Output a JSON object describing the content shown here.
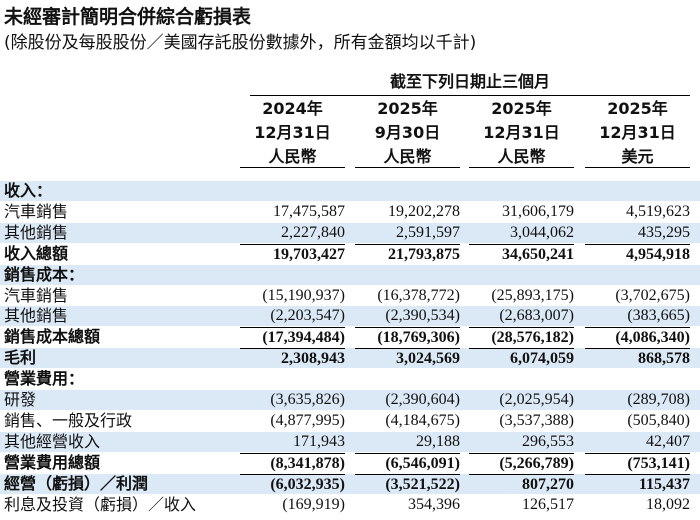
{
  "header": {
    "title": "未經審計簡明合併綜合虧損表",
    "subtitle": "(除股份及每股股份／美國存託股份數據外，所有金額均以千計)"
  },
  "table": {
    "group_header": "截至下列日期止三個月",
    "columns": [
      {
        "year": "2024年",
        "date": "12月31日",
        "currency": "人民幣"
      },
      {
        "year": "2025年",
        "date": "9月30日",
        "currency": "人民幣"
      },
      {
        "year": "2025年",
        "date": "12月31日",
        "currency": "人民幣"
      },
      {
        "year": "2025年",
        "date": "12月31日",
        "currency": "美元"
      }
    ],
    "rows": [
      {
        "label": "收入：",
        "values": []
      },
      {
        "label": "汽車銷售",
        "values": [
          "17,475,587",
          "19,202,278",
          "31,606,179",
          "4,519,623"
        ]
      },
      {
        "label": "其他銷售",
        "values": [
          "2,227,840",
          "2,591,597",
          "3,044,062",
          "435,295"
        ]
      },
      {
        "label": "收入總額",
        "values": [
          "19,703,427",
          "21,793,875",
          "34,650,241",
          "4,954,918"
        ]
      },
      {
        "label": "銷售成本：",
        "values": []
      },
      {
        "label": "汽車銷售",
        "values": [
          "(15,190,937)",
          "(16,378,772)",
          "(25,893,175)",
          "(3,702,675)"
        ]
      },
      {
        "label": "其他銷售",
        "values": [
          "(2,203,547)",
          "(2,390,534)",
          "(2,683,007)",
          "(383,665)"
        ]
      },
      {
        "label": "銷售成本總額",
        "values": [
          "(17,394,484)",
          "(18,769,306)",
          "(28,576,182)",
          "(4,086,340)"
        ]
      },
      {
        "label": "毛利",
        "values": [
          "2,308,943",
          "3,024,569",
          "6,074,059",
          "868,578"
        ]
      },
      {
        "label": "營業費用：",
        "values": []
      },
      {
        "label": "研發",
        "values": [
          "(3,635,826)",
          "(2,390,604)",
          "(2,025,954)",
          "(289,708)"
        ]
      },
      {
        "label": "銷售、一般及行政",
        "values": [
          "(4,877,995)",
          "(4,184,675)",
          "(3,537,388)",
          "(505,840)"
        ]
      },
      {
        "label": "其他經營收入",
        "values": [
          "171,943",
          "29,188",
          "296,553",
          "42,407"
        ]
      },
      {
        "label": "營業費用總額",
        "values": [
          "(8,341,878)",
          "(6,546,091)",
          "(5,266,789)",
          "(753,141)"
        ]
      },
      {
        "label": "經營（虧損）／利潤",
        "values": [
          "(6,032,935)",
          "(3,521,522)",
          "807,270",
          "115,437"
        ]
      },
      {
        "label": "利息及投資（虧損）／收入",
        "values": [
          "(169,919)",
          "354,396",
          "126,517",
          "18,092"
        ]
      }
    ]
  }
}
